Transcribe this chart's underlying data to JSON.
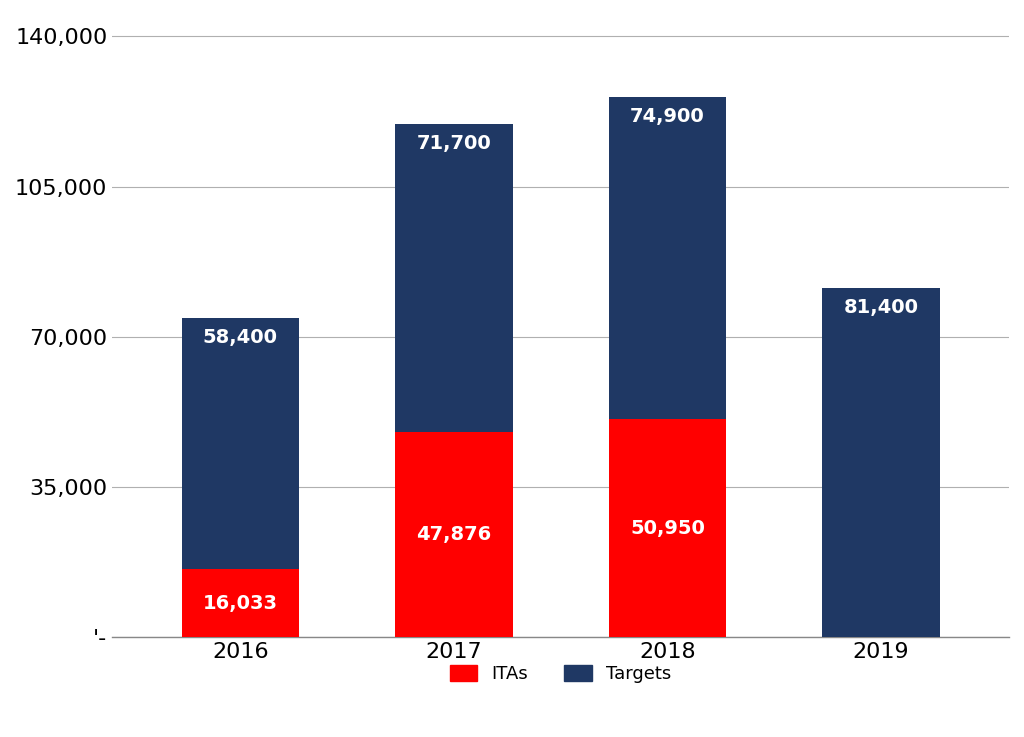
{
  "years": [
    "2016",
    "2017",
    "2018",
    "2019"
  ],
  "itas": [
    16033,
    47876,
    50950,
    0
  ],
  "targets": [
    58400,
    71700,
    74900,
    81400
  ],
  "ita_labels": [
    "16,033",
    "47,876",
    "50,950",
    ""
  ],
  "target_labels": [
    "58,400",
    "71,700",
    "74,900",
    "81,400"
  ],
  "ita_color": "#FF0000",
  "target_color": "#1F3864",
  "background_color": "#FFFFFF",
  "yticks": [
    0,
    35000,
    70000,
    105000,
    140000
  ],
  "ytick_labels": [
    "'-",
    "35,000",
    "70,000",
    "105,000",
    "140,000"
  ],
  "legend_labels": [
    "ITAs",
    "Targets"
  ],
  "bar_width": 0.55,
  "label_fontsize": 14,
  "tick_fontsize": 16,
  "legend_fontsize": 13,
  "ylim_max": 145000
}
